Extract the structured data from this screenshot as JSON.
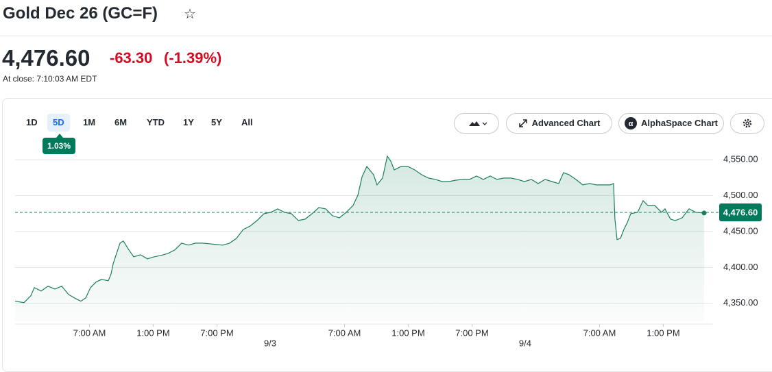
{
  "header": {
    "title": "Gold Dec 26 (GC=F)"
  },
  "quote": {
    "price": "4,476.60",
    "change": "-63.30",
    "change_pct": "(-1.39%)",
    "close_time": "At close: 7:10:03 AM EDT"
  },
  "ranges": [
    "1D",
    "5D",
    "1M",
    "6M",
    "YTD",
    "1Y",
    "5Y",
    "All"
  ],
  "selected_range": 1,
  "range_change": "1.03%",
  "buttons": [
    "Advanced Chart",
    "AlphaSpace Chart"
  ],
  "chart_data": {
    "type": "line",
    "x": [
      0,
      0.84,
      1.48,
      1.81,
      2.45,
      3.1,
      3.74,
      4.39,
      5.03,
      5.68,
      6.19,
      6.65,
      7.1,
      7.61,
      8.13,
      8.77,
      9.03,
      9.23,
      9.55,
      9.87,
      10.19,
      10.71,
      11.16,
      11.81,
      12.45,
      13.1,
      13.74,
      14.39,
      15.03,
      15.68,
      16.32,
      16.97,
      17.61,
      18.26,
      18.9,
      19.55,
      20.19,
      20.84,
      21.48,
      22.13,
      22.77,
      23.42,
      24.06,
      24.71,
      25.35,
      26,
      26.65,
      27.29,
      27.94,
      28.58,
      29.23,
      29.87,
      30.52,
      31.16,
      31.81,
      32.26,
      32.65,
      33.1,
      33.74,
      34.06,
      34.58,
      35.03,
      35.35,
      35.68,
      36.32,
      36.97,
      37.61,
      38.26,
      38.9,
      39.55,
      40.19,
      40.84,
      41.48,
      42.13,
      42.77,
      43.42,
      44.06,
      44.71,
      45.35,
      46,
      46.65,
      47.29,
      47.94,
      48.58,
      49.23,
      49.87,
      50.52,
      51.16,
      51.61,
      52.13,
      52.77,
      53.42,
      54.06,
      54.71,
      55.35,
      56,
      56.32,
      56.45,
      56.65,
      56.97,
      57.29,
      57.61,
      57.94,
      58.58,
      59.1,
      59.55,
      60.19,
      60.84,
      61.16,
      61.68,
      62.13,
      62.77,
      63.42,
      64.06,
      64.84
    ],
    "series": [
      {
        "color": "#1a7f5a",
        "values": [
          4352.9,
          4351.0,
          4360.5,
          4371.9,
          4367.1,
          4373.8,
          4370.0,
          4373.8,
          4362.4,
          4356.7,
          4352.9,
          4357.6,
          4371.9,
          4379.5,
          4383.3,
          4381.4,
          4391.0,
          4405.2,
          4419.5,
          4433.8,
          4436.7,
          4424.3,
          4414.8,
          4417.6,
          4411.9,
          4414.8,
          4416.7,
          4419.5,
          4424.3,
          4433.8,
          4431.0,
          4433.8,
          4433.8,
          4432.9,
          4431.9,
          4431.0,
          4433.8,
          4440.5,
          4452.9,
          4457.6,
          4465.2,
          4474.8,
          4476.7,
          4481.4,
          4476.7,
          4474.8,
          4465.2,
          4467.1,
          4474.8,
          4483.3,
          4481.4,
          4471.9,
          4469.0,
          4476.7,
          4486.2,
          4500.5,
          4526.2,
          4540.5,
          4529.0,
          4514.8,
          4524.3,
          4554.8,
          4548.1,
          4535.7,
          4540.5,
          4540.5,
          4535.7,
          4529.0,
          4524.3,
          4522.4,
          4519.5,
          4519.5,
          4521.4,
          4522.4,
          4522.4,
          4527.2,
          4522.4,
          4527.2,
          4522.4,
          4524.3,
          4524.3,
          4522.4,
          4519.5,
          4522.4,
          4516.7,
          4522.4,
          4519.5,
          4516.7,
          4531.9,
          4529.0,
          4522.4,
          4514.8,
          4516.7,
          4514.8,
          4514.8,
          4514.8,
          4516.7,
          4467.1,
          4438.6,
          4440.5,
          4452.9,
          4462.4,
          4474.8,
          4476.7,
          4492.9,
          4486.2,
          4486.2,
          4476.7,
          4481.4,
          4467.1,
          4465.2,
          4469.0,
          4481.4,
          4476.7,
          4475.7
        ]
      }
    ],
    "xlim": [
      0,
      65.68
    ],
    "ylim": [
      4325,
      4560
    ],
    "yticks": [
      {
        "value": 4550,
        "label": "4,550.00"
      },
      {
        "value": 4500,
        "label": "4,500.00"
      },
      {
        "value": 4450,
        "label": "4,450.00"
      },
      {
        "value": 4400,
        "label": "4,400.00"
      },
      {
        "value": 4350,
        "label": "4,350.00"
      }
    ],
    "xticks": [
      {
        "value": 7,
        "label": "7:00 AM"
      },
      {
        "value": 13,
        "label": "1:00 PM"
      },
      {
        "value": 19,
        "label": "7:00 PM"
      },
      {
        "value": 31,
        "label": "7:00 AM"
      },
      {
        "value": 37,
        "label": "1:00 PM"
      },
      {
        "value": 43,
        "label": "7:00 PM"
      },
      {
        "value": 55,
        "label": "7:00 AM"
      },
      {
        "value": 61,
        "label": "1:00 PM"
      }
    ],
    "date_ticks": [
      {
        "value": 24,
        "label": "9/3"
      },
      {
        "value": 48,
        "label": "9/4"
      }
    ],
    "last_value": {
      "value": 4476.6,
      "label": "4,476.60"
    },
    "grid": true
  }
}
